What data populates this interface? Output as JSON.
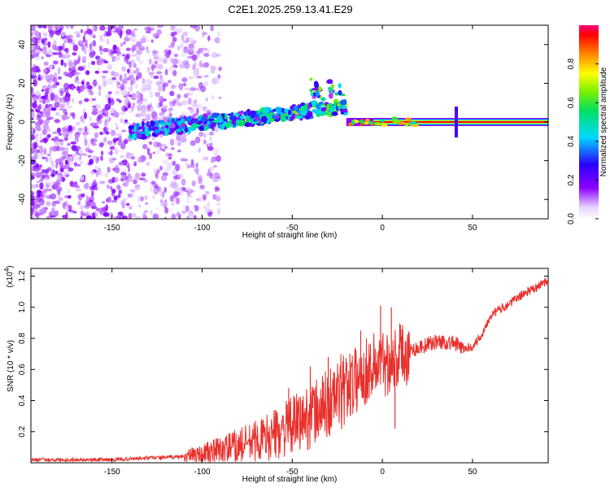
{
  "title": "C2E1.2025.259.13.41.E29",
  "chart_data": [
    {
      "type": "heatmap",
      "name": "spectrogram",
      "xlabel": "Height of straight line (km)",
      "ylabel": "Frequency (Hz)",
      "xlim": [
        -195,
        92
      ],
      "ylim": [
        -50,
        50
      ],
      "xticks": [
        -150,
        -100,
        -50,
        0,
        50
      ],
      "yticks": [
        -40,
        -20,
        0,
        20,
        40
      ],
      "colorbar": {
        "label": "Normalized spectral amplitude",
        "range": [
          0,
          1
        ],
        "ticks": [
          0.0,
          0.2,
          0.4,
          0.6,
          0.8
        ]
      },
      "features": [
        {
          "name": "broadband noise",
          "x_range": [
            -195,
            -105
          ],
          "freq_range": [
            -50,
            50
          ],
          "amplitude": 0.05
        },
        {
          "name": "rising streak",
          "x_start": -140,
          "x_end": -20,
          "freq_start": -5,
          "freq_end": 8,
          "amplitude": 0.3
        },
        {
          "name": "carrier line",
          "x_start": -20,
          "x_end": 92,
          "freq": 0,
          "amplitude": 0.95
        },
        {
          "name": "spike",
          "x": 41,
          "freq_range": [
            -8,
            8
          ],
          "amplitude": 0.25
        }
      ]
    },
    {
      "type": "line",
      "name": "snr",
      "xlabel": "Height of straight line (km)",
      "ylabel": "SNR (10 * v/v)",
      "y_multiplier": "(x10",
      "y_multiplier_exp": "4",
      "y_multiplier_close": ")",
      "xlim": [
        -195,
        92
      ],
      "ylim": [
        0,
        1.25
      ],
      "xticks": [
        -150,
        -100,
        -50,
        0,
        50
      ],
      "yticks": [
        0.2,
        0.4,
        0.6,
        0.8,
        1.0,
        1.2
      ],
      "color": "#e8302c",
      "x": [
        -195,
        -170,
        -150,
        -130,
        -110,
        -100,
        -90,
        -80,
        -70,
        -60,
        -50,
        -40,
        -30,
        -20,
        -10,
        -5,
        0,
        5,
        10,
        20,
        30,
        40,
        45,
        50,
        55,
        60,
        70,
        80,
        85,
        92
      ],
      "y": [
        0.02,
        0.02,
        0.02,
        0.03,
        0.04,
        0.06,
        0.08,
        0.11,
        0.14,
        0.18,
        0.24,
        0.3,
        0.38,
        0.48,
        0.58,
        0.63,
        0.64,
        0.66,
        0.7,
        0.74,
        0.78,
        0.77,
        0.73,
        0.75,
        0.82,
        0.95,
        1.02,
        1.1,
        1.12,
        1.18
      ],
      "spikes": [
        {
          "x": -1,
          "y": 1.01
        },
        {
          "x": -30,
          "y": 0.68
        },
        {
          "x": -18,
          "y": 0.7
        },
        {
          "x": -12,
          "y": 0.85
        },
        {
          "x": 5,
          "y": 1.0
        },
        {
          "x": 7,
          "y": 0.22
        },
        {
          "x": -52,
          "y": 0.48
        },
        {
          "x": -40,
          "y": 0.62
        }
      ]
    }
  ]
}
